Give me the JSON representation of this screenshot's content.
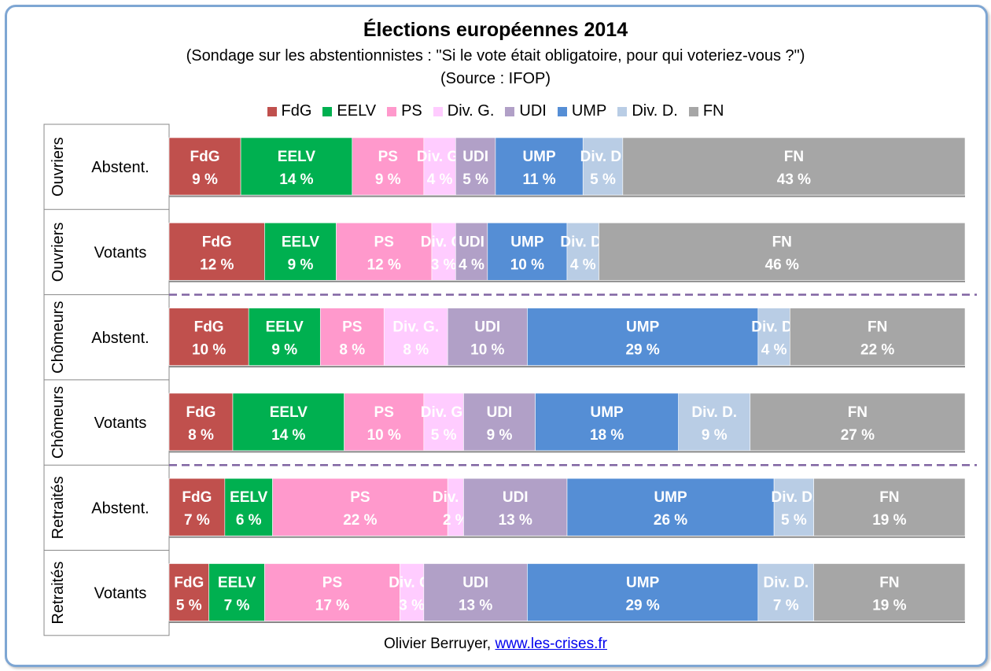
{
  "chart_data": {
    "type": "bar",
    "title": "Élections européennes 2014",
    "subtitle": "(Sondage sur les abstentionnistes : \"Si le vote était obligatoire, pour qui voteriez-vous ?\")",
    "source": "(Source : IFOP)",
    "xlim": [
      0,
      100
    ],
    "legend_position": "top",
    "series": [
      {
        "name": "FdG",
        "color": "#c0504d"
      },
      {
        "name": "EELV",
        "color": "#00b050"
      },
      {
        "name": "PS",
        "color": "#ff99cc"
      },
      {
        "name": "Div. G.",
        "color": "#ffccff"
      },
      {
        "name": "UDI",
        "color": "#b1a0c7"
      },
      {
        "name": "UMP",
        "color": "#558ed5"
      },
      {
        "name": "Div. D.",
        "color": "#b9cde5"
      },
      {
        "name": "FN",
        "color": "#a6a6a6"
      }
    ],
    "rows": [
      {
        "group": "Ouvriers",
        "label": "Abstent.",
        "values": [
          9,
          14,
          9,
          4,
          5,
          11,
          5,
          43
        ]
      },
      {
        "group": "Ouvriers",
        "label": "Votants",
        "values": [
          12,
          9,
          12,
          3,
          4,
          10,
          4,
          46
        ]
      },
      {
        "group": "Chômeurs",
        "label": "Abstent.",
        "values": [
          10,
          9,
          8,
          8,
          10,
          29,
          4,
          22
        ]
      },
      {
        "group": "Chômeurs",
        "label": "Votants",
        "values": [
          8,
          14,
          10,
          5,
          9,
          18,
          9,
          27
        ]
      },
      {
        "group": "Retraités",
        "label": "Abstent.",
        "values": [
          7,
          6,
          22,
          2,
          13,
          26,
          5,
          19
        ]
      },
      {
        "group": "Retraités",
        "label": "Votants",
        "values": [
          5,
          7,
          17,
          3,
          13,
          29,
          7,
          19
        ]
      }
    ],
    "value_suffix": " %"
  },
  "footer": {
    "author": "Olivier Berruyer,",
    "link": "www.les-crises.fr"
  }
}
